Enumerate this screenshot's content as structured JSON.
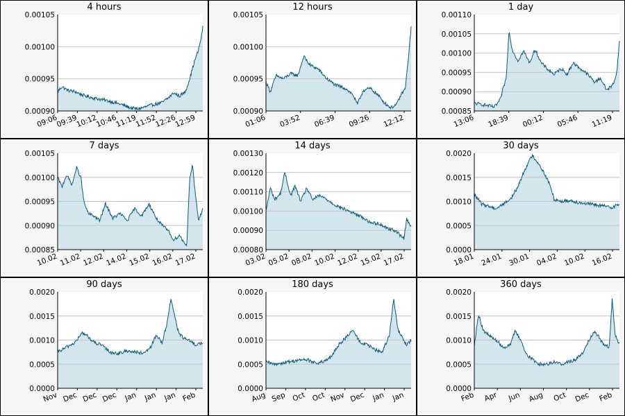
{
  "colors": {
    "line": "#0b5a7c",
    "fill": "#d3e6ee",
    "grid": "#c4c4c4",
    "axis": "#000000"
  },
  "chart_data": [
    {
      "type": "area",
      "title": "4 hours",
      "yticks": [
        "0.00090",
        "0.00095",
        "0.00100",
        "0.00105"
      ],
      "ylim": [
        0.0009,
        0.00105
      ],
      "xticks": [
        "09:06",
        "09:39",
        "10:12",
        "10:46",
        "11:19",
        "11:52",
        "12:26",
        "12:59"
      ],
      "x": [
        0,
        0.03,
        0.07,
        0.12,
        0.18,
        0.25,
        0.32,
        0.38,
        0.44,
        0.5,
        0.55,
        0.6,
        0.66,
        0.72,
        0.76,
        0.8,
        0.84,
        0.88,
        0.91,
        0.94,
        0.97,
        0.99,
        1.0
      ],
      "y": [
        0.00093,
        0.000938,
        0.000932,
        0.00093,
        0.000924,
        0.00092,
        0.000917,
        0.000914,
        0.00091,
        0.000905,
        0.000903,
        0.000906,
        0.00091,
        0.000913,
        0.00092,
        0.000928,
        0.000923,
        0.00093,
        0.00095,
        0.000975,
        0.000995,
        0.001015,
        0.00103
      ]
    },
    {
      "type": "area",
      "title": "12 hours",
      "yticks": [
        "0.00090",
        "0.00095",
        "0.00100",
        "0.00105"
      ],
      "ylim": [
        0.0009,
        0.00105
      ],
      "xticks": [
        "01:06",
        "03:52",
        "06:39",
        "09:26",
        "12:12"
      ],
      "x": [
        0,
        0.03,
        0.07,
        0.12,
        0.17,
        0.22,
        0.26,
        0.3,
        0.36,
        0.42,
        0.48,
        0.55,
        0.6,
        0.63,
        0.67,
        0.72,
        0.77,
        0.82,
        0.86,
        0.9,
        0.93,
        0.96,
        0.98,
        1.0
      ],
      "y": [
        0.000945,
        0.00093,
        0.000955,
        0.00095,
        0.000958,
        0.000955,
        0.000985,
        0.000972,
        0.000965,
        0.00095,
        0.00094,
        0.000935,
        0.000925,
        0.00091,
        0.000932,
        0.000935,
        0.000925,
        0.000912,
        0.000905,
        0.00091,
        0.000925,
        0.000935,
        0.00098,
        0.00103
      ]
    },
    {
      "type": "area",
      "title": "1 day",
      "yticks": [
        "0.00085",
        "0.00090",
        "0.00095",
        "0.00100",
        "0.00105",
        "0.00110"
      ],
      "ylim": [
        0.00085,
        0.0011
      ],
      "xticks": [
        "13:06",
        "18:39",
        "00:12",
        "05:46",
        "11:19"
      ],
      "x": [
        0,
        0.08,
        0.14,
        0.18,
        0.2,
        0.22,
        0.24,
        0.26,
        0.3,
        0.34,
        0.38,
        0.42,
        0.46,
        0.5,
        0.55,
        0.6,
        0.64,
        0.68,
        0.73,
        0.78,
        0.83,
        0.87,
        0.91,
        0.95,
        0.98,
        1.0
      ],
      "y": [
        0.00087,
        0.000865,
        0.00086,
        0.00088,
        0.00091,
        0.000935,
        0.00106,
        0.00101,
        0.00098,
        0.001005,
        0.000975,
        0.00101,
        0.000975,
        0.00096,
        0.000945,
        0.00096,
        0.000945,
        0.000975,
        0.00096,
        0.000945,
        0.000925,
        0.000935,
        0.000905,
        0.000915,
        0.000945,
        0.00103
      ]
    },
    {
      "type": "area",
      "title": "7 days",
      "yticks": [
        "0.00085",
        "0.00090",
        "0.00095",
        "0.00100",
        "0.00105"
      ],
      "ylim": [
        0.00085,
        0.00105
      ],
      "xticks": [
        "10.02",
        "11.02",
        "12.02",
        "14.02",
        "15.02",
        "16.02",
        "17.02"
      ],
      "x": [
        0,
        0.03,
        0.06,
        0.1,
        0.13,
        0.16,
        0.18,
        0.21,
        0.25,
        0.29,
        0.33,
        0.38,
        0.43,
        0.48,
        0.53,
        0.58,
        0.63,
        0.68,
        0.72,
        0.76,
        0.8,
        0.84,
        0.87,
        0.89,
        0.91,
        0.93,
        0.95,
        0.97,
        1.0
      ],
      "y": [
        0.001,
        0.00098,
        0.001005,
        0.000985,
        0.00102,
        0.001,
        0.00095,
        0.000925,
        0.00092,
        0.00091,
        0.000945,
        0.000915,
        0.000925,
        0.00091,
        0.000935,
        0.00092,
        0.000945,
        0.000915,
        0.0009,
        0.00089,
        0.00087,
        0.00088,
        0.000865,
        0.00086,
        0.001,
        0.001025,
        0.00096,
        0.00091,
        0.000935
      ]
    },
    {
      "type": "area",
      "title": "14 days",
      "yticks": [
        "0.00080",
        "0.00090",
        "0.00100",
        "0.00110",
        "0.00120",
        "0.00130"
      ],
      "ylim": [
        0.0008,
        0.0013
      ],
      "xticks": [
        "03.02",
        "05.02",
        "08.02",
        "10.02",
        "12.02",
        "15.02",
        "17.02"
      ],
      "x": [
        0,
        0.03,
        0.06,
        0.1,
        0.13,
        0.17,
        0.2,
        0.24,
        0.28,
        0.32,
        0.37,
        0.42,
        0.48,
        0.54,
        0.6,
        0.66,
        0.72,
        0.78,
        0.84,
        0.89,
        0.93,
        0.95,
        0.97,
        1.0
      ],
      "y": [
        0.001,
        0.00112,
        0.00106,
        0.00109,
        0.0012,
        0.00108,
        0.00113,
        0.00105,
        0.00112,
        0.00106,
        0.00108,
        0.00106,
        0.00103,
        0.00101,
        0.00099,
        0.00097,
        0.00094,
        0.000935,
        0.00091,
        0.0009,
        0.00087,
        0.00086,
        0.00096,
        0.00092
      ]
    },
    {
      "type": "area",
      "title": "30 days",
      "yticks": [
        "0.0000",
        "0.0005",
        "0.0010",
        "0.0015",
        "0.0020"
      ],
      "ylim": [
        0,
        0.002
      ],
      "xticks": [
        "18.01",
        "24.01",
        "30.01",
        "04.02",
        "10.02",
        "16.02"
      ],
      "x": [
        0,
        0.05,
        0.1,
        0.15,
        0.2,
        0.25,
        0.3,
        0.34,
        0.37,
        0.4,
        0.44,
        0.48,
        0.52,
        0.55,
        0.6,
        0.66,
        0.72,
        0.78,
        0.84,
        0.9,
        0.95,
        1.0
      ],
      "y": [
        0.00115,
        0.00095,
        0.0009,
        0.00085,
        0.00095,
        0.00105,
        0.0013,
        0.0016,
        0.0018,
        0.00195,
        0.0018,
        0.0016,
        0.00135,
        0.00105,
        0.001,
        0.00102,
        0.00098,
        0.00095,
        0.00093,
        0.0009,
        0.00088,
        0.00095
      ]
    },
    {
      "type": "area",
      "title": "90 days",
      "yticks": [
        "0.0000",
        "0.0005",
        "0.0010",
        "0.0015",
        "0.0020"
      ],
      "ylim": [
        0,
        0.002
      ],
      "xticks": [
        "Nov",
        "Dec",
        "Dec",
        "Dec",
        "Jan",
        "Jan",
        "Jan",
        "Feb"
      ],
      "x": [
        0,
        0.06,
        0.12,
        0.17,
        0.2,
        0.25,
        0.3,
        0.36,
        0.42,
        0.48,
        0.54,
        0.6,
        0.64,
        0.68,
        0.72,
        0.75,
        0.78,
        0.8,
        0.83,
        0.86,
        0.9,
        0.95,
        1.0
      ],
      "y": [
        0.00075,
        0.00085,
        0.00095,
        0.00115,
        0.0011,
        0.00095,
        0.0009,
        0.00075,
        0.00072,
        0.00078,
        0.00075,
        0.00072,
        0.00085,
        0.0011,
        0.00095,
        0.0013,
        0.00185,
        0.0016,
        0.0012,
        0.00105,
        0.001,
        0.0009,
        0.00095
      ]
    },
    {
      "type": "area",
      "title": "180 days",
      "yticks": [
        "0.0000",
        "0.0005",
        "0.0010",
        "0.0015",
        "0.0020"
      ],
      "ylim": [
        0,
        0.002
      ],
      "xticks": [
        "Aug",
        "Sep",
        "Oct",
        "Oct",
        "Nov",
        "Dec",
        "Jan",
        "Jan"
      ],
      "x": [
        0,
        0.05,
        0.1,
        0.16,
        0.22,
        0.28,
        0.34,
        0.4,
        0.45,
        0.5,
        0.55,
        0.6,
        0.65,
        0.7,
        0.75,
        0.8,
        0.85,
        0.88,
        0.91,
        0.94,
        0.97,
        1.0
      ],
      "y": [
        0.00055,
        0.0005,
        0.00052,
        0.00055,
        0.00058,
        0.0006,
        0.00052,
        0.00055,
        0.00065,
        0.0009,
        0.00105,
        0.0012,
        0.00095,
        0.0009,
        0.0008,
        0.00075,
        0.0011,
        0.00185,
        0.0012,
        0.00105,
        0.0009,
        0.001
      ]
    },
    {
      "type": "area",
      "title": "360 days",
      "yticks": [
        "0.0000",
        "0.0005",
        "0.0010",
        "0.0015",
        "0.0020"
      ],
      "ylim": [
        0,
        0.002
      ],
      "xticks": [
        "Feb",
        "Apr",
        "Jun",
        "Aug",
        "Oct",
        "Dec",
        "Feb"
      ],
      "x": [
        0,
        0.03,
        0.06,
        0.1,
        0.15,
        0.2,
        0.25,
        0.28,
        0.32,
        0.36,
        0.4,
        0.45,
        0.5,
        0.55,
        0.6,
        0.65,
        0.7,
        0.75,
        0.79,
        0.83,
        0.87,
        0.9,
        0.93,
        0.95,
        0.97,
        1.0
      ],
      "y": [
        0.0009,
        0.00155,
        0.0012,
        0.0011,
        0.001,
        0.00085,
        0.0009,
        0.0012,
        0.001,
        0.0007,
        0.0006,
        0.0005,
        0.0005,
        0.00055,
        0.0005,
        0.00055,
        0.0006,
        0.00075,
        0.001,
        0.0012,
        0.001,
        0.0009,
        0.00085,
        0.00185,
        0.0011,
        0.0009
      ]
    }
  ]
}
